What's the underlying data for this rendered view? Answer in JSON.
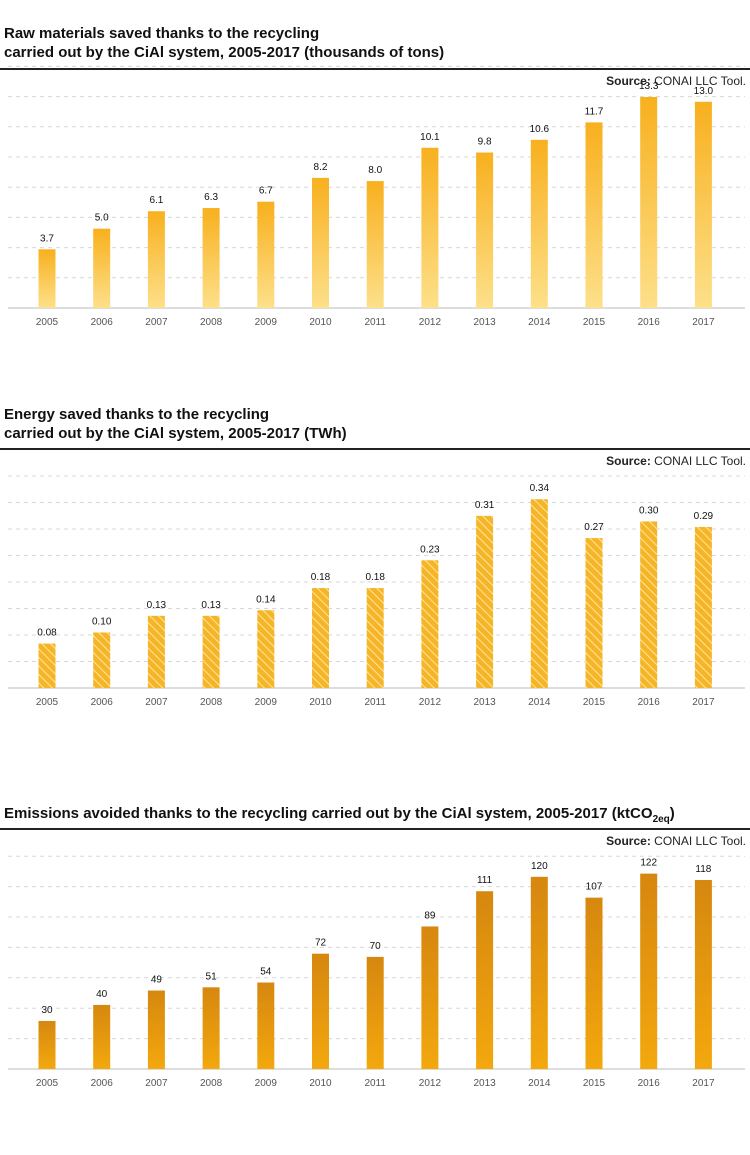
{
  "source_label": "Source:",
  "source_text": "CONAI LLC Tool.",
  "colors": {
    "bar1_top": "#f8b01e",
    "bar1_bottom": "#fde08a",
    "bar2": "#f6b526",
    "bar2_hatch": "#fde5a0",
    "bar3_top": "#d6870f",
    "bar3_bottom": "#f3a80e",
    "grid": "#d8d8d8",
    "axis": "#bbbbbb"
  },
  "chart_data": [
    {
      "type": "bar",
      "title_line1": "Raw materials saved thanks to the recycling",
      "title_line2": "carried out by the CiAl system, 2005-2017 (thousands of tons)",
      "categories": [
        "2005",
        "2006",
        "2007",
        "2008",
        "2009",
        "2010",
        "2011",
        "2012",
        "2013",
        "2014",
        "2015",
        "2016",
        "2017"
      ],
      "values": [
        3.7,
        5.0,
        6.1,
        6.3,
        6.7,
        8.2,
        8.0,
        10.1,
        9.8,
        10.6,
        11.7,
        13.3,
        13.0
      ],
      "labels": [
        "3.7",
        "5.0",
        "6.1",
        "6.3",
        "6.7",
        "8.2",
        "8.0",
        "10.1",
        "9.8",
        "10.6",
        "11.7",
        "13.3",
        "13.0"
      ],
      "ylim": [
        0,
        14
      ]
    },
    {
      "type": "bar",
      "title_line1": "Energy saved thanks to the recycling",
      "title_line2": "carried out by the CiAl system, 2005-2017 (TWh)",
      "categories": [
        "2005",
        "2006",
        "2007",
        "2008",
        "2009",
        "2010",
        "2011",
        "2012",
        "2013",
        "2014",
        "2015",
        "2016",
        "2017"
      ],
      "values": [
        0.08,
        0.1,
        0.13,
        0.13,
        0.14,
        0.18,
        0.18,
        0.23,
        0.31,
        0.34,
        0.27,
        0.3,
        0.29
      ],
      "labels": [
        "0.08",
        "0.10",
        "0.13",
        "0.13",
        "0.14",
        "0.18",
        "0.18",
        "0.23",
        "0.31",
        "0.34",
        "0.27",
        "0.30",
        "0.29"
      ],
      "ylim": [
        0,
        0.4
      ]
    },
    {
      "type": "bar",
      "title_main": "Emissions avoided thanks to the recycling carried out by the CiAl system, 2005-2017 (ktCO",
      "title_sub": "2eq",
      "title_end": ")",
      "categories": [
        "2005",
        "2006",
        "2007",
        "2008",
        "2009",
        "2010",
        "2011",
        "2012",
        "2013",
        "2014",
        "2015",
        "2016",
        "2017"
      ],
      "values": [
        30,
        40,
        49,
        51,
        54,
        72,
        70,
        89,
        111,
        120,
        107,
        122,
        118
      ],
      "labels": [
        "30",
        "40",
        "49",
        "51",
        "54",
        "72",
        "70",
        "89",
        "111",
        "120",
        "107",
        "122",
        "118"
      ],
      "ylim": [
        0,
        140
      ]
    }
  ]
}
